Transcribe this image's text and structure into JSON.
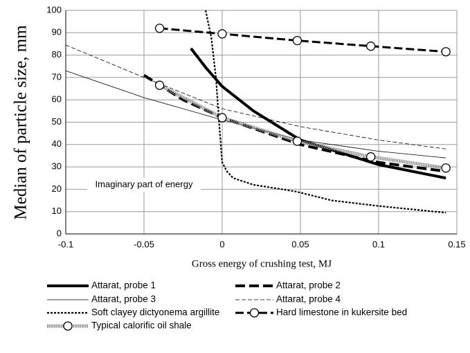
{
  "chart_data": {
    "type": "line",
    "xlabel": "Gross energy of crushing test, MJ",
    "ylabel": "Median of particle size, mm",
    "annotation": "Imaginary part of energy",
    "annotation_x": -0.05,
    "annotation_y": 22,
    "xlim": [
      -0.1,
      0.15
    ],
    "xticks": [
      -0.1,
      -0.05,
      0,
      0.05,
      0.1,
      0.15
    ],
    "ylim": [
      0,
      100
    ],
    "yticks": [
      0,
      10,
      20,
      30,
      40,
      50,
      60,
      70,
      80,
      90,
      100
    ],
    "grid": true,
    "series": [
      {
        "name": "Attarat, probe 1",
        "color": "#000000",
        "width": 4,
        "dash": "none",
        "x": [
          -0.02,
          -0.01,
          0,
          0.02,
          0.05,
          0.1,
          0.143
        ],
        "values": [
          83,
          74,
          66,
          55,
          42,
          31,
          25
        ]
      },
      {
        "name": "Attarat, probe 2",
        "color": "#000000",
        "width": 4,
        "dash": "14,6",
        "x": [
          -0.05,
          -0.025,
          0,
          0.05,
          0.1,
          0.143
        ],
        "values": [
          71,
          60,
          52,
          40,
          32,
          28
        ]
      },
      {
        "name": "Attarat, probe 3",
        "color": "#000000",
        "width": 0.8,
        "dash": "none",
        "x": [
          -0.1,
          -0.05,
          0,
          0.05,
          0.1,
          0.143
        ],
        "values": [
          73,
          61,
          51,
          42,
          37,
          34
        ]
      },
      {
        "name": "Attarat, probe 4",
        "color": "#000000",
        "width": 0.8,
        "dash": "6,3",
        "x": [
          -0.1,
          -0.05,
          0,
          0.05,
          0.1,
          0.143
        ],
        "values": [
          84.5,
          70,
          56,
          48,
          42,
          38
        ]
      },
      {
        "name": "Soft clayey dictyonema argillite",
        "color": "#000000",
        "width": 2.2,
        "dash": "3,2",
        "x": [
          -0.0106,
          -0.007,
          -0.004,
          -0.002,
          0,
          0.003,
          0.007,
          0.02,
          0.047,
          0.07,
          0.1,
          0.143
        ],
        "values": [
          100,
          88,
          70,
          50,
          32,
          28,
          25,
          22,
          19,
          15,
          12.5,
          9.5
        ]
      },
      {
        "name": "Hard limestone in kukersite bed",
        "color": "#000000",
        "width": 3,
        "dash": "12,5",
        "marker": "circle",
        "x": [
          -0.04,
          0,
          0.048,
          0.095,
          0.143
        ],
        "values": [
          92,
          89.5,
          86.5,
          84,
          81.5
        ]
      },
      {
        "name": "Typical calorific oil shale",
        "color": "#8a8a8a",
        "width": 5,
        "dash": "1.5,1",
        "marker": "circle",
        "x": [
          -0.04,
          0,
          0.048,
          0.095,
          0.143
        ],
        "values": [
          66.5,
          52,
          41.5,
          34.5,
          29.5
        ]
      }
    ]
  }
}
